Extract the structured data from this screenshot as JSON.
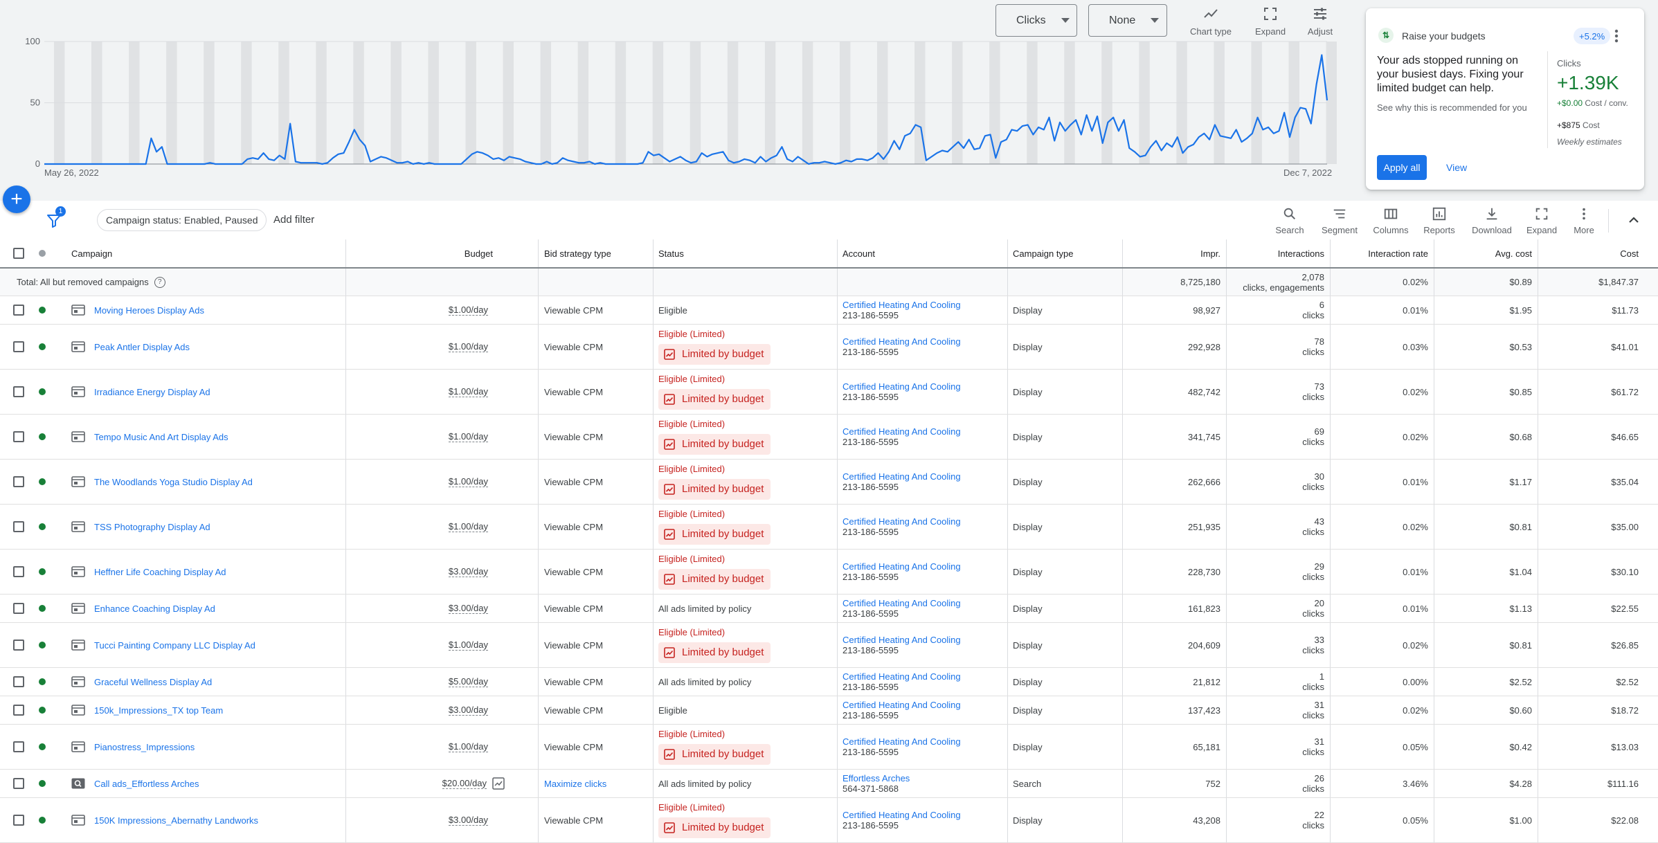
{
  "chart": {
    "metric1": {
      "label": "Clicks",
      "color": "#1a73e8"
    },
    "metric2": {
      "label": "None",
      "color": "#d93025"
    },
    "tools": [
      {
        "label": "Chart type",
        "icon": "chart-type-icon"
      },
      {
        "label": "Expand",
        "icon": "expand-icon"
      },
      {
        "label": "Adjust",
        "icon": "adjust-icon"
      }
    ]
  },
  "chart_data": {
    "type": "line",
    "title": "",
    "series": [
      {
        "name": "Clicks",
        "color": "#1a73e8"
      }
    ],
    "x_start": "May 26, 2022",
    "x_end": "Dec 7, 2022",
    "y_ticks": [
      "100",
      "50",
      "0"
    ],
    "ylim": [
      0,
      100
    ],
    "grid": true,
    "values": [
      0,
      0,
      0,
      0,
      0,
      0,
      0,
      0,
      0,
      0,
      0,
      0,
      0,
      0,
      0,
      0,
      0,
      0,
      0,
      0,
      21,
      10,
      14,
      0,
      0,
      0,
      0,
      0,
      0,
      0,
      0,
      1,
      0,
      0,
      0,
      0,
      0,
      0,
      4,
      5,
      4,
      9,
      4,
      3,
      7,
      4,
      33,
      2,
      1,
      1,
      1,
      1,
      0,
      1,
      5,
      8,
      9,
      18,
      28,
      20,
      15,
      2,
      4,
      6,
      5,
      3,
      1,
      1,
      2,
      0,
      1,
      0,
      1,
      0,
      0,
      0,
      0,
      0,
      0,
      4,
      8,
      10,
      9,
      7,
      4,
      5,
      3,
      6,
      5,
      4,
      2,
      1,
      0,
      0,
      2,
      0,
      1,
      5,
      3,
      2,
      1,
      1,
      2,
      0,
      1,
      0,
      0,
      0,
      0,
      0,
      0,
      0,
      1,
      10,
      7,
      8,
      5,
      2,
      4,
      6,
      3,
      1,
      2,
      9,
      6,
      8,
      9,
      10,
      3,
      1,
      2,
      4,
      3,
      1,
      6,
      2,
      5,
      7,
      14,
      4,
      2,
      6,
      3,
      0,
      1,
      1,
      2,
      1,
      0,
      1,
      3,
      2,
      4,
      4,
      3,
      5,
      9,
      4,
      10,
      19,
      12,
      23,
      25,
      32,
      30,
      3,
      6,
      9,
      11,
      10,
      14,
      18,
      13,
      20,
      12,
      13,
      23,
      24,
      5,
      18,
      20,
      28,
      27,
      31,
      32,
      24,
      30,
      28,
      38,
      19,
      34,
      27,
      32,
      36,
      24,
      40,
      27,
      39,
      17,
      34,
      38,
      27,
      36,
      13,
      10,
      6,
      7,
      14,
      19,
      11,
      17,
      14,
      22,
      9,
      14,
      16,
      22,
      25,
      20,
      32,
      23,
      22,
      21,
      28,
      18,
      21,
      25,
      38,
      28,
      30,
      25,
      27,
      42,
      22,
      38,
      46,
      45,
      33,
      65,
      89,
      52
    ]
  },
  "recommendation": {
    "title": "Raise your budgets",
    "badge": "+5.2%",
    "body": "Your ads stopped running on your busiest days. Fixing your limited budget can help.",
    "link": "See why this is recommended for you",
    "metric_label": "Clicks",
    "metric_value": "+1.39K",
    "cost_per_conv_value": "+$0.00",
    "cost_per_conv_label": "Cost / conv.",
    "cost_value": "+$875",
    "cost_label": "Cost",
    "note": "Weekly estimates",
    "apply": "Apply all",
    "view": "View"
  },
  "filters": {
    "count": "1",
    "chip": "Campaign status: Enabled, Paused",
    "add": "Add filter"
  },
  "toolbar": [
    {
      "label": "Search",
      "icon": "search-icon"
    },
    {
      "label": "Segment",
      "icon": "segment-icon"
    },
    {
      "label": "Columns",
      "icon": "columns-icon"
    },
    {
      "label": "Reports",
      "icon": "reports-icon"
    },
    {
      "label": "Download",
      "icon": "download-icon"
    },
    {
      "label": "Expand",
      "icon": "expand-icon"
    },
    {
      "label": "More",
      "icon": "more-vert-icon"
    }
  ],
  "table": {
    "headers": {
      "campaign": "Campaign",
      "budget": "Budget",
      "bid": "Bid strategy type",
      "status": "Status",
      "account": "Account",
      "type": "Campaign type",
      "impr": "Impr.",
      "interactions": "Interactions",
      "rate": "Interaction rate",
      "avg": "Avg. cost",
      "cost": "Cost"
    },
    "total": {
      "label": "Total: All but removed campaigns",
      "impr": "8,725,180",
      "interactions": "2,078",
      "interactions_sub": "clicks, engagements",
      "rate": "0.02%",
      "avg": "$0.89",
      "cost": "$1,847.37"
    },
    "rows": [
      {
        "name": "Moving Heroes Display Ads",
        "budget": "$1.00/day",
        "bid": "Viewable CPM",
        "status": "Eligible",
        "limited": false,
        "account": "Certified Heating And Cooling",
        "account_id": "213-186-5595",
        "type": "Display",
        "impr": "98,927",
        "interactions": "6",
        "interactions_sub": "clicks",
        "rate": "0.01%",
        "avg": "$1.95",
        "cost": "$11.73"
      },
      {
        "name": "Peak Antler Display Ads",
        "budget": "$1.00/day",
        "bid": "Viewable CPM",
        "status": "Eligible (Limited)",
        "limited": true,
        "chip": "Limited by budget",
        "account": "Certified Heating And Cooling",
        "account_id": "213-186-5595",
        "type": "Display",
        "impr": "292,928",
        "interactions": "78",
        "interactions_sub": "clicks",
        "rate": "0.03%",
        "avg": "$0.53",
        "cost": "$41.01"
      },
      {
        "name": "Irradiance Energy Display Ad",
        "budget": "$1.00/day",
        "bid": "Viewable CPM",
        "status": "Eligible (Limited)",
        "limited": true,
        "chip": "Limited by budget",
        "account": "Certified Heating And Cooling",
        "account_id": "213-186-5595",
        "type": "Display",
        "impr": "482,742",
        "interactions": "73",
        "interactions_sub": "clicks",
        "rate": "0.02%",
        "avg": "$0.85",
        "cost": "$61.72"
      },
      {
        "name": "Tempo Music And Art Display Ads",
        "budget": "$1.00/day",
        "bid": "Viewable CPM",
        "status": "Eligible (Limited)",
        "limited": true,
        "chip": "Limited by budget",
        "account": "Certified Heating And Cooling",
        "account_id": "213-186-5595",
        "type": "Display",
        "impr": "341,745",
        "interactions": "69",
        "interactions_sub": "clicks",
        "rate": "0.02%",
        "avg": "$0.68",
        "cost": "$46.65"
      },
      {
        "name": "The Woodlands Yoga Studio Display Ad",
        "budget": "$1.00/day",
        "bid": "Viewable CPM",
        "status": "Eligible (Limited)",
        "limited": true,
        "chip": "Limited by budget",
        "account": "Certified Heating And Cooling",
        "account_id": "213-186-5595",
        "type": "Display",
        "impr": "262,666",
        "interactions": "30",
        "interactions_sub": "clicks",
        "rate": "0.01%",
        "avg": "$1.17",
        "cost": "$35.04"
      },
      {
        "name": "TSS Photography Display Ad",
        "budget": "$1.00/day",
        "bid": "Viewable CPM",
        "status": "Eligible (Limited)",
        "limited": true,
        "chip": "Limited by budget",
        "account": "Certified Heating And Cooling",
        "account_id": "213-186-5595",
        "type": "Display",
        "impr": "251,935",
        "interactions": "43",
        "interactions_sub": "clicks",
        "rate": "0.02%",
        "avg": "$0.81",
        "cost": "$35.00"
      },
      {
        "name": "Heffner Life Coaching Display Ad",
        "budget": "$3.00/day",
        "bid": "Viewable CPM",
        "status": "Eligible (Limited)",
        "limited": true,
        "chip": "Limited by budget",
        "account": "Certified Heating And Cooling",
        "account_id": "213-186-5595",
        "type": "Display",
        "impr": "228,730",
        "interactions": "29",
        "interactions_sub": "clicks",
        "rate": "0.01%",
        "avg": "$1.04",
        "cost": "$30.10"
      },
      {
        "name": "Enhance Coaching Display Ad",
        "budget": "$3.00/day",
        "bid": "Viewable CPM",
        "status": "All ads limited by policy",
        "limited": false,
        "account": "Certified Heating And Cooling",
        "account_id": "213-186-5595",
        "type": "Display",
        "impr": "161,823",
        "interactions": "20",
        "interactions_sub": "clicks",
        "rate": "0.01%",
        "avg": "$1.13",
        "cost": "$22.55"
      },
      {
        "name": "Tucci Painting Company LLC Display Ad",
        "budget": "$1.00/day",
        "bid": "Viewable CPM",
        "status": "Eligible (Limited)",
        "limited": true,
        "chip": "Limited by budget",
        "account": "Certified Heating And Cooling",
        "account_id": "213-186-5595",
        "type": "Display",
        "impr": "204,609",
        "interactions": "33",
        "interactions_sub": "clicks",
        "rate": "0.02%",
        "avg": "$0.81",
        "cost": "$26.85"
      },
      {
        "name": "Graceful Wellness Display Ad",
        "budget": "$5.00/day",
        "bid": "Viewable CPM",
        "status": "All ads limited by policy",
        "limited": false,
        "account": "Certified Heating And Cooling",
        "account_id": "213-186-5595",
        "type": "Display",
        "impr": "21,812",
        "interactions": "1",
        "interactions_sub": "clicks",
        "rate": "0.00%",
        "avg": "$2.52",
        "cost": "$2.52"
      },
      {
        "name": "150k_Impressions_TX top Team",
        "budget": "$3.00/day",
        "bid": "Viewable CPM",
        "status": "Eligible",
        "limited": false,
        "account": "Certified Heating And Cooling",
        "account_id": "213-186-5595",
        "type": "Display",
        "impr": "137,423",
        "interactions": "31",
        "interactions_sub": "clicks",
        "rate": "0.02%",
        "avg": "$0.60",
        "cost": "$18.72"
      },
      {
        "name": "Pianostress_Impressions",
        "budget": "$1.00/day",
        "bid": "Viewable CPM",
        "status": "Eligible (Limited)",
        "limited": true,
        "chip": "Limited by budget",
        "account": "Certified Heating And Cooling",
        "account_id": "213-186-5595",
        "type": "Display",
        "impr": "65,181",
        "interactions": "31",
        "interactions_sub": "clicks",
        "rate": "0.05%",
        "avg": "$0.42",
        "cost": "$13.03"
      },
      {
        "name": "Call ads_Effortless Arches",
        "budget": "$20.00/day",
        "bid": "Maximize clicks",
        "bid_link": true,
        "search": true,
        "status": "All ads limited by policy",
        "limited": false,
        "account": "Effortless Arches",
        "account_id": "564-371-5868",
        "type": "Search",
        "impr": "752",
        "interactions": "26",
        "interactions_sub": "clicks",
        "rate": "3.46%",
        "avg": "$4.28",
        "cost": "$111.16"
      },
      {
        "name": "150K Impressions_Abernathy Landworks",
        "budget": "$3.00/day",
        "bid": "Viewable CPM",
        "status": "Eligible (Limited)",
        "limited": true,
        "chip": "Limited by budget",
        "account": "Certified Heating And Cooling",
        "account_id": "213-186-5595",
        "type": "Display",
        "impr": "43,208",
        "interactions": "22",
        "interactions_sub": "clicks",
        "rate": "0.05%",
        "avg": "$1.00",
        "cost": "$22.08"
      }
    ]
  }
}
